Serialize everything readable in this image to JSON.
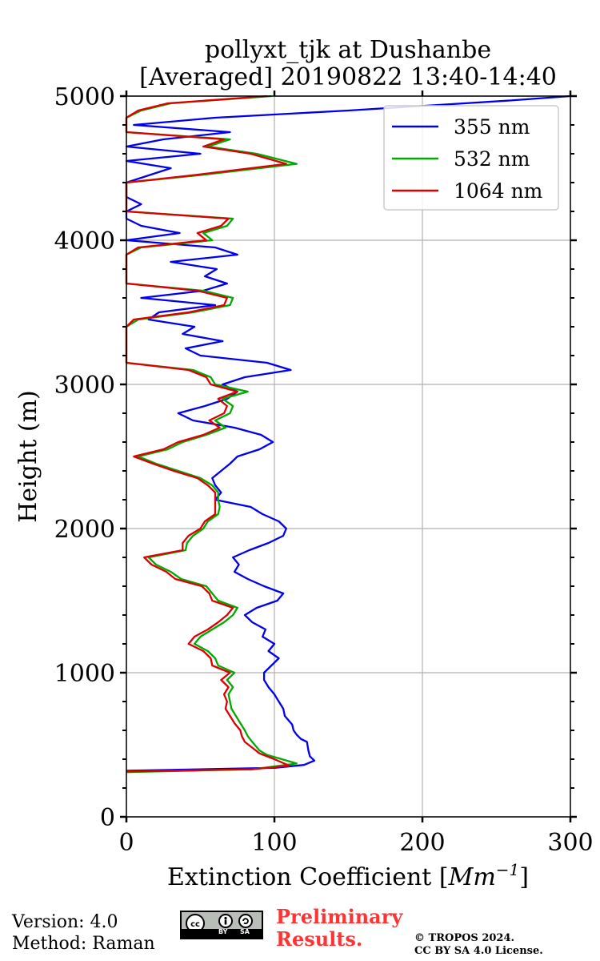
{
  "chart_data": {
    "type": "line",
    "title_line1": "pollyxt_tjk at Dushanbe",
    "title_line2": "[Averaged] 20190822 13:40-14:40",
    "xlabel_text": "Extinction Coefficient [",
    "xlabel_unit_main": "Mm",
    "xlabel_unit_exp": "−1",
    "xlabel_close": "]",
    "ylabel": "Height (m)",
    "xlim": [
      0,
      300
    ],
    "ylim": [
      0,
      5000
    ],
    "x_ticks": [
      0,
      100,
      200,
      300
    ],
    "y_ticks": [
      0,
      1000,
      2000,
      3000,
      4000,
      5000
    ],
    "x_tick_labels": [
      "0",
      "100",
      "200",
      "300"
    ],
    "y_tick_labels": [
      "0",
      "1000",
      "2000",
      "3000",
      "4000",
      "5000"
    ],
    "grid": true,
    "legend_position": "top-right",
    "series": [
      {
        "name": "355 nm",
        "color": "#0000ee",
        "points": [
          [
            0,
            320
          ],
          [
            100,
            340
          ],
          [
            120,
            360
          ],
          [
            127,
            390
          ],
          [
            124,
            420
          ],
          [
            123,
            460
          ],
          [
            122,
            520
          ],
          [
            118,
            540
          ],
          [
            115,
            570
          ],
          [
            113,
            600
          ],
          [
            112,
            640
          ],
          [
            107,
            700
          ],
          [
            106,
            750
          ],
          [
            103,
            800
          ],
          [
            100,
            850
          ],
          [
            96,
            900
          ],
          [
            93,
            950
          ],
          [
            93,
            1000
          ],
          [
            98,
            1050
          ],
          [
            103,
            1100
          ],
          [
            96,
            1150
          ],
          [
            100,
            1200
          ],
          [
            92,
            1250
          ],
          [
            94,
            1300
          ],
          [
            85,
            1350
          ],
          [
            80,
            1400
          ],
          [
            88,
            1450
          ],
          [
            102,
            1500
          ],
          [
            106,
            1550
          ],
          [
            93,
            1600
          ],
          [
            82,
            1650
          ],
          [
            73,
            1700
          ],
          [
            76,
            1750
          ],
          [
            72,
            1800
          ],
          [
            83,
            1850
          ],
          [
            96,
            1900
          ],
          [
            106,
            1950
          ],
          [
            108,
            2000
          ],
          [
            103,
            2050
          ],
          [
            92,
            2100
          ],
          [
            84,
            2150
          ],
          [
            60,
            2200
          ],
          [
            64,
            2250
          ],
          [
            60,
            2300
          ],
          [
            58,
            2350
          ],
          [
            64,
            2400
          ],
          [
            70,
            2450
          ],
          [
            75,
            2500
          ],
          [
            90,
            2550
          ],
          [
            99,
            2600
          ],
          [
            91,
            2650
          ],
          [
            73,
            2700
          ],
          [
            45,
            2750
          ],
          [
            35,
            2800
          ],
          [
            53,
            2850
          ],
          [
            68,
            2900
          ],
          [
            75,
            2950
          ],
          [
            65,
            3000
          ],
          [
            80,
            3050
          ],
          [
            111,
            3100
          ],
          [
            95,
            3150
          ],
          [
            50,
            3200
          ],
          [
            40,
            3250
          ],
          [
            65,
            3300
          ],
          [
            38,
            3350
          ],
          [
            46,
            3400
          ],
          [
            15,
            3450
          ],
          [
            22,
            3500
          ],
          [
            60,
            3550
          ],
          [
            10,
            3600
          ],
          [
            52,
            3650
          ],
          [
            68,
            3700
          ],
          [
            53,
            3750
          ],
          [
            61,
            3800
          ],
          [
            30,
            3850
          ],
          [
            75,
            3900
          ],
          [
            60,
            3950
          ],
          [
            0,
            4000
          ],
          [
            36,
            4050
          ],
          [
            10,
            4100
          ],
          [
            0,
            4150
          ],
          [
            0,
            4200
          ],
          [
            10,
            4250
          ],
          [
            0,
            4300
          ],
          [
            0,
            4400
          ],
          [
            30,
            4500
          ],
          [
            0,
            4550
          ],
          [
            50,
            4600
          ],
          [
            0,
            4650
          ],
          [
            25,
            4700
          ],
          [
            70,
            4750
          ],
          [
            5,
            4800
          ],
          [
            60,
            4850
          ],
          [
            150,
            4900
          ],
          [
            260,
            4970
          ],
          [
            300,
            5000
          ]
        ]
      },
      {
        "name": "532 nm",
        "color": "#00aa00",
        "points": [
          [
            0,
            310
          ],
          [
            85,
            330
          ],
          [
            115,
            370
          ],
          [
            105,
            400
          ],
          [
            95,
            430
          ],
          [
            90,
            460
          ],
          [
            85,
            520
          ],
          [
            82,
            560
          ],
          [
            80,
            600
          ],
          [
            77,
            650
          ],
          [
            74,
            700
          ],
          [
            71,
            750
          ],
          [
            70,
            800
          ],
          [
            69,
            850
          ],
          [
            72,
            900
          ],
          [
            68,
            950
          ],
          [
            73,
            1000
          ],
          [
            62,
            1050
          ],
          [
            60,
            1100
          ],
          [
            55,
            1150
          ],
          [
            46,
            1200
          ],
          [
            50,
            1250
          ],
          [
            58,
            1300
          ],
          [
            66,
            1350
          ],
          [
            72,
            1400
          ],
          [
            75,
            1450
          ],
          [
            62,
            1500
          ],
          [
            58,
            1550
          ],
          [
            54,
            1600
          ],
          [
            37,
            1650
          ],
          [
            30,
            1700
          ],
          [
            20,
            1750
          ],
          [
            15,
            1800
          ],
          [
            40,
            1850
          ],
          [
            41,
            1900
          ],
          [
            45,
            1950
          ],
          [
            52,
            2000
          ],
          [
            55,
            2050
          ],
          [
            62,
            2100
          ],
          [
            63,
            2150
          ],
          [
            62,
            2200
          ],
          [
            62,
            2250
          ],
          [
            58,
            2300
          ],
          [
            50,
            2350
          ],
          [
            35,
            2400
          ],
          [
            20,
            2450
          ],
          [
            8,
            2500
          ],
          [
            28,
            2550
          ],
          [
            38,
            2600
          ],
          [
            54,
            2650
          ],
          [
            67,
            2700
          ],
          [
            60,
            2750
          ],
          [
            70,
            2800
          ],
          [
            72,
            2850
          ],
          [
            65,
            2900
          ],
          [
            82,
            2950
          ],
          [
            60,
            3000
          ],
          [
            57,
            3050
          ],
          [
            45,
            3100
          ],
          [
            0,
            3150
          ],
          [
            0,
            3300
          ],
          [
            0,
            3400
          ],
          [
            8,
            3450
          ],
          [
            45,
            3500
          ],
          [
            70,
            3550
          ],
          [
            72,
            3600
          ],
          [
            52,
            3650
          ],
          [
            0,
            3700
          ],
          [
            0,
            3800
          ],
          [
            0,
            3900
          ],
          [
            10,
            3950
          ],
          [
            58,
            4000
          ],
          [
            52,
            4050
          ],
          [
            68,
            4100
          ],
          [
            72,
            4150
          ],
          [
            0,
            4200
          ],
          [
            0,
            4400
          ],
          [
            48,
            4450
          ],
          [
            115,
            4530
          ],
          [
            88,
            4600
          ],
          [
            55,
            4650
          ],
          [
            70,
            4700
          ],
          [
            0,
            4750
          ],
          [
            0,
            4850
          ],
          [
            10,
            4900
          ],
          [
            30,
            4950
          ],
          [
            98,
            5000
          ]
        ]
      },
      {
        "name": "1064 nm",
        "color": "#dd0000",
        "points": [
          [
            0,
            315
          ],
          [
            85,
            330
          ],
          [
            110,
            355
          ],
          [
            100,
            400
          ],
          [
            90,
            440
          ],
          [
            85,
            480
          ],
          [
            80,
            520
          ],
          [
            78,
            560
          ],
          [
            77,
            600
          ],
          [
            73,
            650
          ],
          [
            70,
            700
          ],
          [
            67,
            750
          ],
          [
            68,
            800
          ],
          [
            66,
            850
          ],
          [
            69,
            900
          ],
          [
            64,
            950
          ],
          [
            70,
            1000
          ],
          [
            58,
            1050
          ],
          [
            57,
            1100
          ],
          [
            52,
            1150
          ],
          [
            42,
            1200
          ],
          [
            46,
            1250
          ],
          [
            55,
            1300
          ],
          [
            62,
            1350
          ],
          [
            68,
            1400
          ],
          [
            72,
            1450
          ],
          [
            58,
            1500
          ],
          [
            56,
            1550
          ],
          [
            51,
            1600
          ],
          [
            33,
            1650
          ],
          [
            27,
            1700
          ],
          [
            17,
            1750
          ],
          [
            12,
            1800
          ],
          [
            38,
            1850
          ],
          [
            38,
            1900
          ],
          [
            42,
            1950
          ],
          [
            50,
            2000
          ],
          [
            53,
            2050
          ],
          [
            60,
            2100
          ],
          [
            60,
            2150
          ],
          [
            60,
            2200
          ],
          [
            60,
            2250
          ],
          [
            55,
            2300
          ],
          [
            48,
            2350
          ],
          [
            32,
            2400
          ],
          [
            18,
            2450
          ],
          [
            5,
            2500
          ],
          [
            25,
            2550
          ],
          [
            35,
            2600
          ],
          [
            52,
            2650
          ],
          [
            63,
            2700
          ],
          [
            56,
            2750
          ],
          [
            66,
            2800
          ],
          [
            68,
            2850
          ],
          [
            62,
            2900
          ],
          [
            75,
            2950
          ],
          [
            57,
            3000
          ],
          [
            54,
            3050
          ],
          [
            42,
            3100
          ],
          [
            0,
            3150
          ],
          [
            0,
            3300
          ],
          [
            0,
            3400
          ],
          [
            5,
            3450
          ],
          [
            42,
            3500
          ],
          [
            66,
            3550
          ],
          [
            68,
            3600
          ],
          [
            48,
            3650
          ],
          [
            0,
            3700
          ],
          [
            0,
            3800
          ],
          [
            0,
            3900
          ],
          [
            8,
            3950
          ],
          [
            54,
            4000
          ],
          [
            48,
            4050
          ],
          [
            64,
            4100
          ],
          [
            69,
            4150
          ],
          [
            0,
            4200
          ],
          [
            0,
            4400
          ],
          [
            44,
            4450
          ],
          [
            108,
            4530
          ],
          [
            84,
            4600
          ],
          [
            52,
            4650
          ],
          [
            66,
            4700
          ],
          [
            0,
            4750
          ],
          [
            0,
            4850
          ],
          [
            8,
            4900
          ],
          [
            28,
            4950
          ],
          [
            95,
            5000
          ]
        ]
      }
    ]
  },
  "footer": {
    "version": "Version: 4.0",
    "method": "Method: Raman",
    "preliminary_line1": "Preliminary",
    "preliminary_line2": "Results.",
    "copyright_line1": "© TROPOS 2024.",
    "copyright_line2": "CC BY SA 4.0 License.",
    "cc_by": "BY",
    "cc_sa": "SA"
  }
}
